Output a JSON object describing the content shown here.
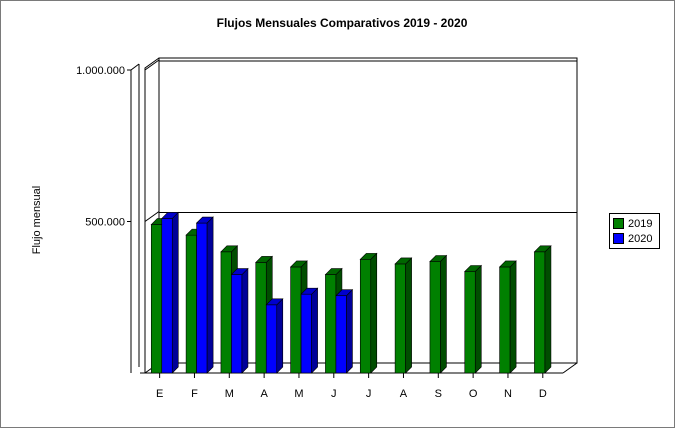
{
  "chart_data": {
    "type": "bar",
    "title": "Flujos Mensuales Comparativos 2019 - 2020",
    "xlabel": "",
    "ylabel": "Flujo mensual",
    "ylim": [
      0,
      1000000
    ],
    "yticks": [
      "500.000",
      "1.000.000"
    ],
    "ytick_values": [
      500000,
      1000000
    ],
    "categories": [
      "E",
      "F",
      "M",
      "A",
      "M",
      "J",
      "J",
      "A",
      "S",
      "O",
      "N",
      "D"
    ],
    "series": [
      {
        "name": "2019",
        "color": "#008000",
        "values": [
          490000,
          455000,
          400000,
          365000,
          350000,
          325000,
          375000,
          360000,
          368000,
          335000,
          350000,
          400000
        ]
      },
      {
        "name": "2020",
        "color": "#0000ff",
        "values": [
          510000,
          495000,
          325000,
          225000,
          260000,
          255000,
          null,
          null,
          null,
          null,
          null,
          null
        ]
      }
    ],
    "legend_position": "right",
    "grid": true,
    "style": "3d"
  }
}
